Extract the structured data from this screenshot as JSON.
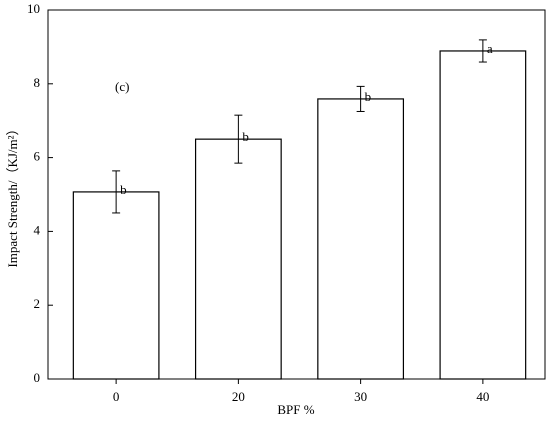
{
  "chart_data": {
    "type": "bar",
    "x_label": "BPF %",
    "y_label": "Impact Strength/（KJ/m²）",
    "annotation": "(c)",
    "categories": [
      "0",
      "20",
      "30",
      "40"
    ],
    "values": [
      5.07,
      6.5,
      7.59,
      8.89
    ],
    "errors": [
      0.57,
      0.65,
      0.34,
      0.3
    ],
    "significance_letters": [
      "b",
      "b",
      "b",
      "a"
    ],
    "color": "#ffffff",
    "ylim": [
      0,
      10
    ],
    "yticks": [
      0,
      2,
      4,
      6,
      8,
      10
    ],
    "grid": false
  }
}
